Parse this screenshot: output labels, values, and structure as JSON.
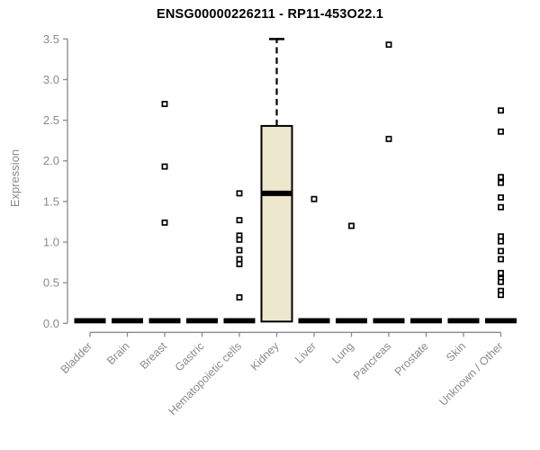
{
  "title": "ENSG00000226211 - RP11-453O22.1",
  "chart_data": {
    "type": "boxplot",
    "title": "ENSG00000226211 - RP11-453O22.1",
    "xlabel": "",
    "ylabel": "Expression",
    "ylim": [
      0,
      3.5
    ],
    "ytick_labels": [
      "0.0",
      "0.5",
      "1.0",
      "1.5",
      "2.0",
      "2.5",
      "3.0",
      "3.5"
    ],
    "grid": false,
    "legend": false,
    "categories": [
      "Bladder",
      "Brain",
      "Breast",
      "Gastric",
      "Hematopoietic cells",
      "Kidney",
      "Liver",
      "Lung",
      "Pancreas",
      "Prostate",
      "Skin",
      "Unknown / Other"
    ],
    "series": [
      {
        "name": "Bladder",
        "q1": 0,
        "median": 0,
        "q3": 0,
        "whisker_low": 0,
        "whisker_high": 0,
        "outliers": []
      },
      {
        "name": "Brain",
        "q1": 0,
        "median": 0,
        "q3": 0,
        "whisker_low": 0,
        "whisker_high": 0,
        "outliers": []
      },
      {
        "name": "Breast",
        "q1": 0,
        "median": 0,
        "q3": 0,
        "whisker_low": 0,
        "whisker_high": 0,
        "outliers": [
          2.7,
          1.93,
          1.24
        ]
      },
      {
        "name": "Gastric",
        "q1": 0,
        "median": 0,
        "q3": 0,
        "whisker_low": 0,
        "whisker_high": 0,
        "outliers": []
      },
      {
        "name": "Hematopoietic cells",
        "q1": 0,
        "median": 0,
        "q3": 0,
        "whisker_low": 0,
        "whisker_high": 0,
        "outliers": [
          1.6,
          1.27,
          1.08,
          1.03,
          0.9,
          0.79,
          0.73,
          0.32
        ]
      },
      {
        "name": "Kidney",
        "q1": 0,
        "median": 1.6,
        "q3": 2.43,
        "whisker_low": 0,
        "whisker_high": 3.5,
        "outliers": []
      },
      {
        "name": "Liver",
        "q1": 0,
        "median": 0,
        "q3": 0,
        "whisker_low": 0,
        "whisker_high": 0,
        "outliers": [
          1.53
        ]
      },
      {
        "name": "Lung",
        "q1": 0,
        "median": 0,
        "q3": 0,
        "whisker_low": 0,
        "whisker_high": 0,
        "outliers": [
          1.2
        ]
      },
      {
        "name": "Pancreas",
        "q1": 0,
        "median": 0,
        "q3": 0,
        "whisker_low": 0,
        "whisker_high": 0,
        "outliers": [
          3.43,
          2.27
        ]
      },
      {
        "name": "Prostate",
        "q1": 0,
        "median": 0,
        "q3": 0,
        "whisker_low": 0,
        "whisker_high": 0,
        "outliers": []
      },
      {
        "name": "Skin",
        "q1": 0,
        "median": 0,
        "q3": 0,
        "whisker_low": 0,
        "whisker_high": 0,
        "outliers": []
      },
      {
        "name": "Unknown / Other",
        "q1": 0,
        "median": 0,
        "q3": 0,
        "whisker_low": 0,
        "whisker_high": 0,
        "outliers": [
          2.62,
          2.36,
          1.8,
          1.73,
          1.55,
          1.43,
          1.07,
          1.01,
          0.89,
          0.79,
          0.62,
          0.55,
          0.51,
          0.4,
          0.35
        ]
      }
    ]
  },
  "colors": {
    "box_fill": "#ede8cd",
    "box_stroke": "#000000",
    "zero_bar": "#000000",
    "axis_line": "#8a8a8a",
    "tick_text": "#8a8a8a",
    "title_text": "#000000",
    "outlier_fill": "#ffffff",
    "background": "#ffffff"
  }
}
